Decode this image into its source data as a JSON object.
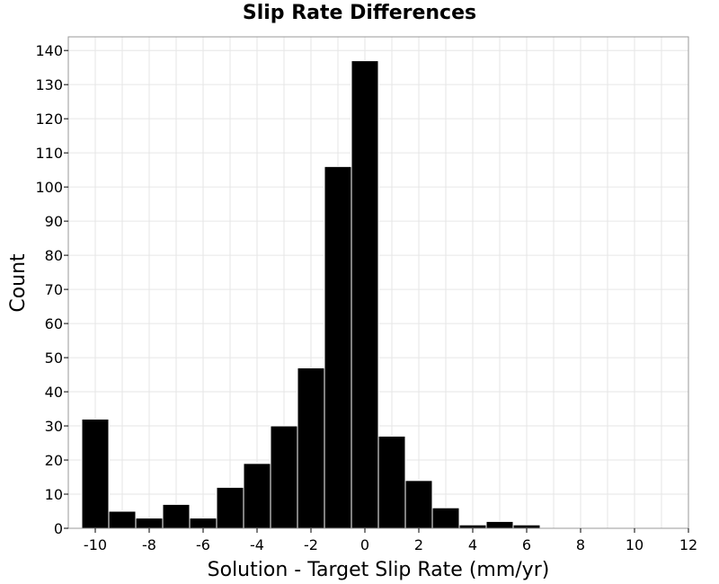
{
  "chart_data": {
    "type": "bar",
    "title": "Slip Rate Differences",
    "xlabel": "Solution - Target Slip Rate (mm/yr)",
    "ylabel": "Count",
    "xlim": [
      -11,
      12
    ],
    "ylim": [
      0,
      144
    ],
    "grid": true,
    "x_ticks": [
      -10,
      -8,
      -6,
      -4,
      -2,
      0,
      2,
      4,
      6,
      8,
      10,
      12
    ],
    "y_ticks": [
      0,
      10,
      20,
      30,
      40,
      50,
      60,
      70,
      80,
      90,
      100,
      110,
      120,
      130,
      140
    ],
    "bin_width": 1,
    "bins": [
      {
        "x": -10,
        "count": 32
      },
      {
        "x": -9,
        "count": 5
      },
      {
        "x": -8,
        "count": 3
      },
      {
        "x": -7,
        "count": 7
      },
      {
        "x": -6,
        "count": 3
      },
      {
        "x": -5,
        "count": 12
      },
      {
        "x": -4,
        "count": 19
      },
      {
        "x": -3,
        "count": 30
      },
      {
        "x": -2,
        "count": 47
      },
      {
        "x": -1,
        "count": 106
      },
      {
        "x": 0,
        "count": 137
      },
      {
        "x": 1,
        "count": 27
      },
      {
        "x": 2,
        "count": 14
      },
      {
        "x": 3,
        "count": 6
      },
      {
        "x": 4,
        "count": 1
      },
      {
        "x": 5,
        "count": 2
      },
      {
        "x": 6,
        "count": 1
      }
    ]
  }
}
